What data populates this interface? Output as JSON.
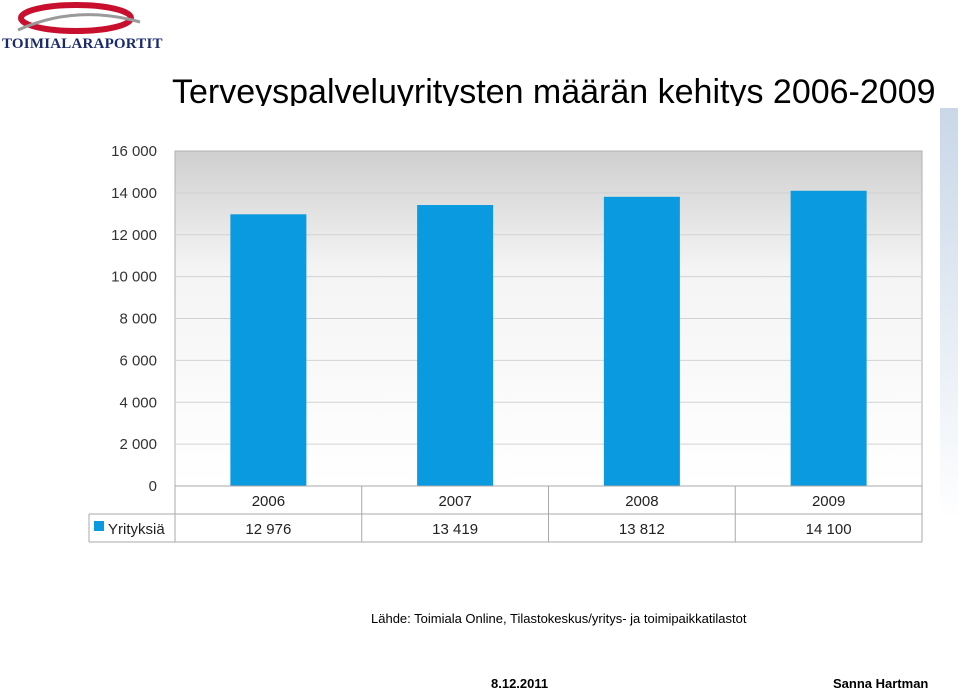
{
  "logo": {
    "text": "TOIMIALARAPORTIT"
  },
  "header": {
    "title": "Terveyspalveluyritysten määrän kehitys 2006-2009"
  },
  "chart_data": {
    "type": "bar",
    "categories": [
      "2006",
      "2007",
      "2008",
      "2009"
    ],
    "series": [
      {
        "name": "Yrityksiä",
        "values": [
          12976,
          13419,
          13812,
          14100
        ],
        "labels": [
          "12 976",
          "13 419",
          "13 812",
          "14 100"
        ]
      }
    ],
    "yticks": [
      "16 000",
      "14 000",
      "12 000",
      "10 000",
      "8 000",
      "6 000",
      "4 000",
      "2 000",
      "0"
    ],
    "ylim": [
      0,
      16000
    ],
    "grid": true,
    "legend": "data-table-left",
    "bar_color": "#0a9ae0"
  },
  "source": {
    "text": "Lähde: Toimiala Online, Tilastokeskus/yritys- ja toimipaikkatilastot"
  },
  "footer": {
    "date": "8.12.2011",
    "author": "Sanna Hartman"
  }
}
